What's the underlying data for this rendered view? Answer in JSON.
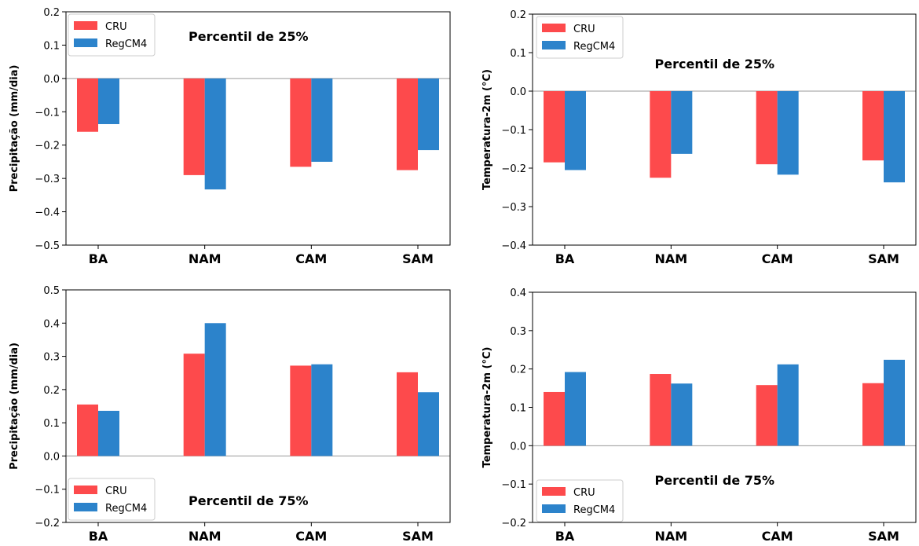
{
  "header_caption": "",
  "colors": {
    "CRU": "#fd4a4c",
    "RegCM4": "#2c83cb",
    "zero_line": "#9a9a9a"
  },
  "chart_data": [
    {
      "type": "bar",
      "panel": "top-left",
      "title": "",
      "annotation": "Percentil de 25%",
      "annotation_position": "top-center",
      "ylabel": "Precipitação (mm/dia)",
      "xlabel": "",
      "categories": [
        "BA",
        "NAM",
        "CAM",
        "SAM"
      ],
      "ylim": [
        -0.5,
        0.2
      ],
      "yticks": [
        0.2,
        0.1,
        0.0,
        -0.1,
        -0.2,
        -0.3,
        -0.4,
        -0.5
      ],
      "ytick_labels": [
        "0.2",
        "0.1",
        "0.0",
        "−0.1",
        "−0.2",
        "−0.3",
        "−0.4",
        "−0.5"
      ],
      "legend_position": "top-left",
      "grid": false,
      "series": [
        {
          "name": "CRU",
          "values": [
            -0.16,
            -0.29,
            -0.265,
            -0.275
          ]
        },
        {
          "name": "RegCM4",
          "values": [
            -0.137,
            -0.333,
            -0.25,
            -0.215
          ]
        }
      ]
    },
    {
      "type": "bar",
      "panel": "top-right",
      "title": "",
      "annotation": "Percentil de 25%",
      "annotation_position": "upper-center",
      "ylabel": "Temperatura-2m (°C)",
      "xlabel": "",
      "categories": [
        "BA",
        "NAM",
        "CAM",
        "SAM"
      ],
      "ylim": [
        -0.4,
        0.2
      ],
      "yticks": [
        0.2,
        0.1,
        0.0,
        -0.1,
        -0.2,
        -0.3,
        -0.4
      ],
      "ytick_labels": [
        "0.2",
        "0.1",
        "0.0",
        "−0.1",
        "−0.2",
        "−0.3",
        "−0.4"
      ],
      "legend_position": "top-left",
      "grid": false,
      "series": [
        {
          "name": "CRU",
          "values": [
            -0.185,
            -0.225,
            -0.19,
            -0.18
          ]
        },
        {
          "name": "RegCM4",
          "values": [
            -0.205,
            -0.163,
            -0.217,
            -0.237
          ]
        }
      ]
    },
    {
      "type": "bar",
      "panel": "bottom-left",
      "title": "",
      "annotation": "Percentil de 75%",
      "annotation_position": "bottom-center",
      "ylabel": "Precipitação (mm/dia)",
      "xlabel": "",
      "categories": [
        "BA",
        "NAM",
        "CAM",
        "SAM"
      ],
      "ylim": [
        -0.2,
        0.5
      ],
      "yticks": [
        0.5,
        0.4,
        0.3,
        0.2,
        0.1,
        0.0,
        -0.1,
        -0.2
      ],
      "ytick_labels": [
        "0.5",
        "0.4",
        "0.3",
        "0.2",
        "0.1",
        "0.0",
        "−0.1",
        "−0.2"
      ],
      "legend_position": "bottom-left",
      "grid": false,
      "series": [
        {
          "name": "CRU",
          "values": [
            0.155,
            0.308,
            0.272,
            0.252
          ]
        },
        {
          "name": "RegCM4",
          "values": [
            0.136,
            0.4,
            0.276,
            0.192
          ]
        }
      ]
    },
    {
      "type": "bar",
      "panel": "bottom-right",
      "title": "",
      "annotation": "Percentil de 75%",
      "annotation_position": "lower-center",
      "ylabel": "Temperatura-2m (°C)",
      "xlabel": "",
      "categories": [
        "BA",
        "NAM",
        "CAM",
        "SAM"
      ],
      "ylim": [
        -0.2,
        0.4
      ],
      "yticks": [
        0.4,
        0.3,
        0.2,
        0.1,
        0.0,
        -0.1,
        -0.2
      ],
      "ytick_labels": [
        "0.4",
        "0.3",
        "0.2",
        "0.1",
        "0.0",
        "−0.1",
        "−0.2"
      ],
      "legend_position": "bottom-left",
      "grid": false,
      "series": [
        {
          "name": "CRU",
          "values": [
            0.14,
            0.187,
            0.158,
            0.163
          ]
        },
        {
          "name": "RegCM4",
          "values": [
            0.192,
            0.162,
            0.212,
            0.224
          ]
        }
      ]
    }
  ]
}
